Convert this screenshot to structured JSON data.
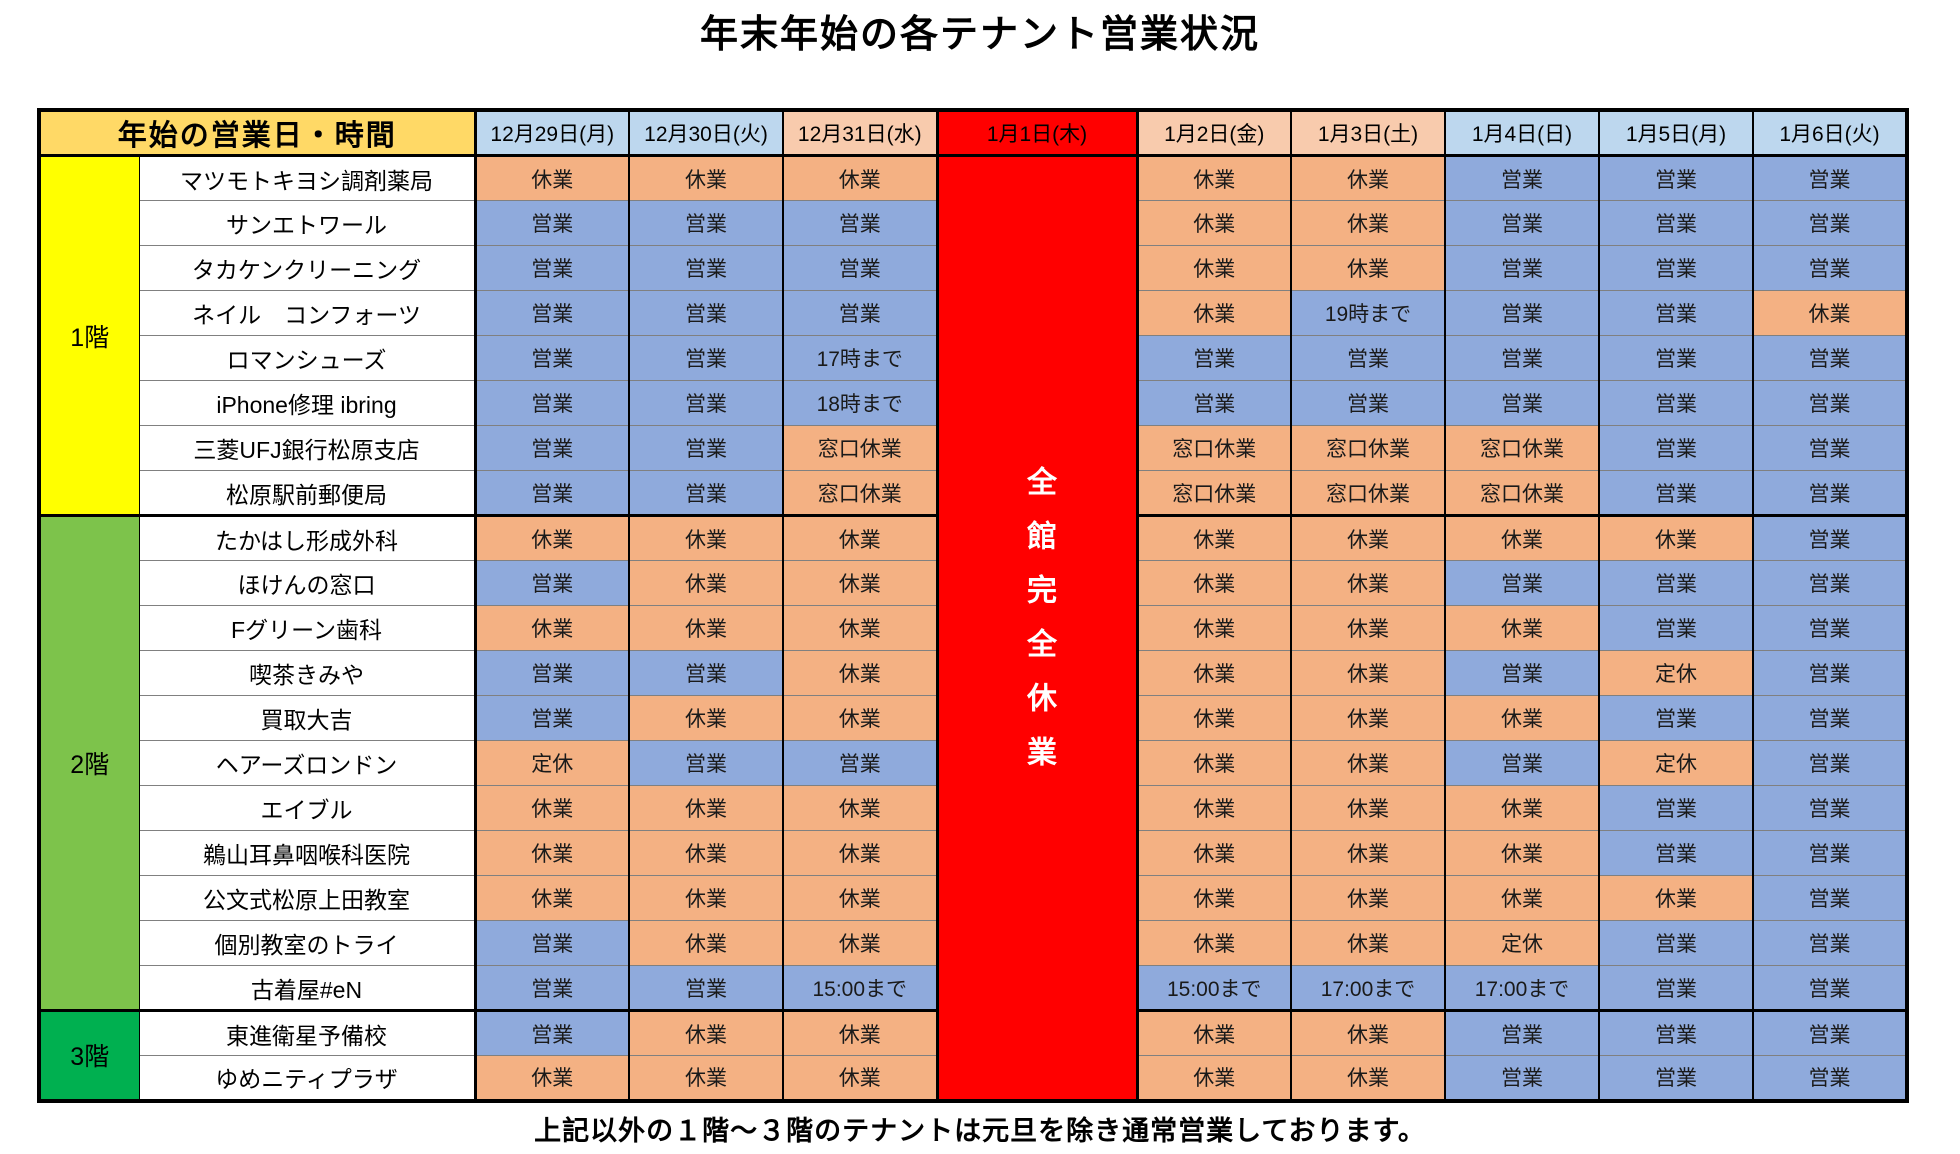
{
  "title": "年末年始の各テナント営業状況",
  "footer_note": "上記以外の１階～３階のテナントは元旦を除き通常営業しております。",
  "colors": {
    "corner_header_bg": "#FFD966",
    "header_blue": "#BDD7EE",
    "header_peach": "#F8CBAD",
    "closed_day_red": "#FF0000",
    "status_open_blue": "#8FAADC",
    "status_closed_peach": "#F4B183",
    "floor1_yellow": "#FFFF00",
    "floor2_green": "#7DC34B",
    "floor3_green": "#00B050"
  },
  "table": {
    "corner_header": "年始の営業日・時間",
    "date_headers": [
      {
        "label": "12月29日(月)",
        "type": "blue"
      },
      {
        "label": "12月30日(火)",
        "type": "blue"
      },
      {
        "label": "12月31日(水)",
        "type": "peach"
      },
      {
        "label": "1月1日(木)",
        "type": "red"
      },
      {
        "label": "1月2日(金)",
        "type": "peach"
      },
      {
        "label": "1月3日(土)",
        "type": "peach"
      },
      {
        "label": "1月4日(日)",
        "type": "blue"
      },
      {
        "label": "1月5日(月)",
        "type": "blue"
      },
      {
        "label": "1月6日(火)",
        "type": "blue"
      }
    ],
    "closed_column": {
      "index": 3,
      "date": "1月1日(木)",
      "label": "全館完全休業"
    },
    "floors": [
      {
        "label": "1階",
        "color": "#FFFF00",
        "tenants": [
          {
            "name": "マツモトキヨシ調剤薬局",
            "statuses": [
              "休業",
              "休業",
              "休業",
              "休業",
              "休業",
              "営業",
              "営業",
              "営業"
            ]
          },
          {
            "name": "サンエトワール",
            "statuses": [
              "営業",
              "営業",
              "営業",
              "休業",
              "休業",
              "営業",
              "営業",
              "営業"
            ]
          },
          {
            "name": "タカケンクリーニング",
            "statuses": [
              "営業",
              "営業",
              "営業",
              "休業",
              "休業",
              "営業",
              "営業",
              "営業"
            ]
          },
          {
            "name": "ネイル　コンフォーツ",
            "statuses": [
              "営業",
              "営業",
              "営業",
              "休業",
              "19時まで",
              "営業",
              "営業",
              "休業"
            ]
          },
          {
            "name": "ロマンシューズ",
            "statuses": [
              "営業",
              "営業",
              "17時まで",
              "営業",
              "営業",
              "営業",
              "営業",
              "営業"
            ]
          },
          {
            "name": "iPhone修理 ibring",
            "statuses": [
              "営業",
              "営業",
              "18時まで",
              "営業",
              "営業",
              "営業",
              "営業",
              "営業"
            ]
          },
          {
            "name": "三菱UFJ銀行松原支店",
            "statuses": [
              "営業",
              "営業",
              "窓口休業",
              "窓口休業",
              "窓口休業",
              "窓口休業",
              "営業",
              "営業"
            ]
          },
          {
            "name": "松原駅前郵便局",
            "statuses": [
              "営業",
              "営業",
              "窓口休業",
              "窓口休業",
              "窓口休業",
              "窓口休業",
              "営業",
              "営業"
            ]
          }
        ]
      },
      {
        "label": "2階",
        "color": "#7DC34B",
        "tenants": [
          {
            "name": "たかはし形成外科",
            "statuses": [
              "休業",
              "休業",
              "休業",
              "休業",
              "休業",
              "休業",
              "休業",
              "営業"
            ]
          },
          {
            "name": "ほけんの窓口",
            "statuses": [
              "営業",
              "休業",
              "休業",
              "休業",
              "休業",
              "営業",
              "営業",
              "営業"
            ]
          },
          {
            "name": "Fグリーン歯科",
            "statuses": [
              "休業",
              "休業",
              "休業",
              "休業",
              "休業",
              "休業",
              "営業",
              "営業"
            ]
          },
          {
            "name": "喫茶きみや",
            "statuses": [
              "営業",
              "営業",
              "休業",
              "休業",
              "休業",
              "営業",
              "定休",
              "営業"
            ]
          },
          {
            "name": "買取大吉",
            "statuses": [
              "営業",
              "休業",
              "休業",
              "休業",
              "休業",
              "休業",
              "営業",
              "営業"
            ]
          },
          {
            "name": "ヘアーズロンドン",
            "statuses": [
              "定休",
              "営業",
              "営業",
              "休業",
              "休業",
              "営業",
              "定休",
              "営業"
            ]
          },
          {
            "name": "エイブル",
            "statuses": [
              "休業",
              "休業",
              "休業",
              "休業",
              "休業",
              "休業",
              "営業",
              "営業"
            ]
          },
          {
            "name": "鵜山耳鼻咽喉科医院",
            "statuses": [
              "休業",
              "休業",
              "休業",
              "休業",
              "休業",
              "休業",
              "営業",
              "営業"
            ]
          },
          {
            "name": "公文式松原上田教室",
            "statuses": [
              "休業",
              "休業",
              "休業",
              "休業",
              "休業",
              "休業",
              "休業",
              "営業"
            ]
          },
          {
            "name": "個別教室のトライ",
            "statuses": [
              "営業",
              "休業",
              "休業",
              "休業",
              "休業",
              "定休",
              "営業",
              "営業"
            ]
          },
          {
            "name": "古着屋#eN",
            "statuses": [
              "営業",
              "営業",
              "15:00まで",
              "15:00まで",
              "17:00まで",
              "17:00まで",
              "営業",
              "営業"
            ]
          }
        ]
      },
      {
        "label": "3階",
        "color": "#00B050",
        "tenants": [
          {
            "name": "東進衛星予備校",
            "statuses": [
              "営業",
              "休業",
              "休業",
              "休業",
              "休業",
              "営業",
              "営業",
              "営業"
            ]
          },
          {
            "name": "ゆめニティプラザ",
            "statuses": [
              "休業",
              "休業",
              "休業",
              "休業",
              "休業",
              "営業",
              "営業",
              "営業"
            ]
          }
        ]
      }
    ]
  }
}
